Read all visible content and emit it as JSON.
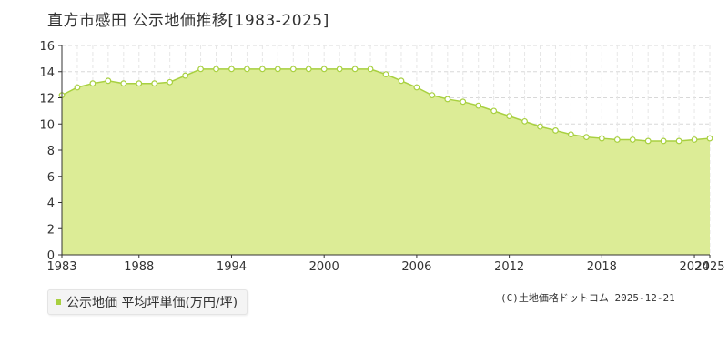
{
  "chart_data": {
    "type": "area",
    "title": "直方市感田 公示地価推移[1983-2025]",
    "xlabel": "",
    "ylabel": "",
    "ylim": [
      0,
      16
    ],
    "xlim": [
      1983,
      2025
    ],
    "y_ticks": [
      "0",
      "2",
      "4",
      "6",
      "8",
      "10",
      "12",
      "14",
      "16"
    ],
    "x_ticks": [
      "1983",
      "1988",
      "1994",
      "2000",
      "2006",
      "2012",
      "2018",
      "2024",
      "2025"
    ],
    "grid": true,
    "legend_position": "bottom-left",
    "series": [
      {
        "name": "公示地価 平均坪単価(万円/坪)",
        "color": "#a8d040",
        "fill": "#dcec96",
        "x": [
          1983,
          1984,
          1985,
          1986,
          1987,
          1988,
          1989,
          1990,
          1991,
          1992,
          1993,
          1994,
          1995,
          1996,
          1997,
          1998,
          1999,
          2000,
          2001,
          2002,
          2003,
          2004,
          2005,
          2006,
          2007,
          2008,
          2009,
          2010,
          2011,
          2012,
          2013,
          2014,
          2015,
          2016,
          2017,
          2018,
          2019,
          2020,
          2021,
          2022,
          2023,
          2024,
          2025
        ],
        "values": [
          12.2,
          12.8,
          13.1,
          13.3,
          13.1,
          13.1,
          13.1,
          13.2,
          13.7,
          14.2,
          14.2,
          14.2,
          14.2,
          14.2,
          14.2,
          14.2,
          14.2,
          14.2,
          14.2,
          14.2,
          14.2,
          13.8,
          13.3,
          12.8,
          12.2,
          11.9,
          11.7,
          11.4,
          11.0,
          10.6,
          10.2,
          9.8,
          9.5,
          9.2,
          9.0,
          8.9,
          8.8,
          8.8,
          8.7,
          8.7,
          8.7,
          8.8,
          8.9
        ]
      }
    ]
  },
  "legend": {
    "label": "公示地価 平均坪単価(万円/坪)"
  },
  "credit": "(C)土地価格ドットコム 2025-12-21"
}
